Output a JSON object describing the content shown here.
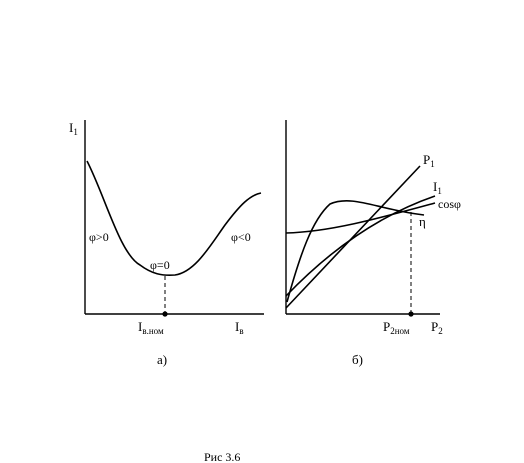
{
  "figure_caption": "Рис 3.6",
  "left_plot": {
    "y_label": "I",
    "y_label_sub": "1",
    "x_label": "I",
    "x_label_sub": "в",
    "x_mark_label": "I",
    "x_mark_sub": "в.ном",
    "region_left": "φ>0",
    "region_min": "φ=0",
    "region_right": "φ<0",
    "caption": "а)"
  },
  "right_plot": {
    "x_label": "P",
    "x_label_sub": "2",
    "x_mark_label": "P",
    "x_mark_sub": "2ном",
    "curves": {
      "p1": "P",
      "p1_sub": "1",
      "i1": "I",
      "i1_sub": "1",
      "cos": "cosφ",
      "eta": "η"
    },
    "caption": "б)"
  },
  "colors": {
    "ink": "#000000",
    "background": "#ffffff"
  }
}
